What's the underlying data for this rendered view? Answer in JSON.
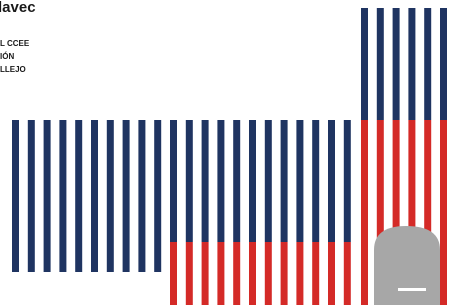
{
  "header": {
    "title": "lavec"
  },
  "credits": [
    "L CCEE",
    "IÓN",
    "LLEJO"
  ]
}
